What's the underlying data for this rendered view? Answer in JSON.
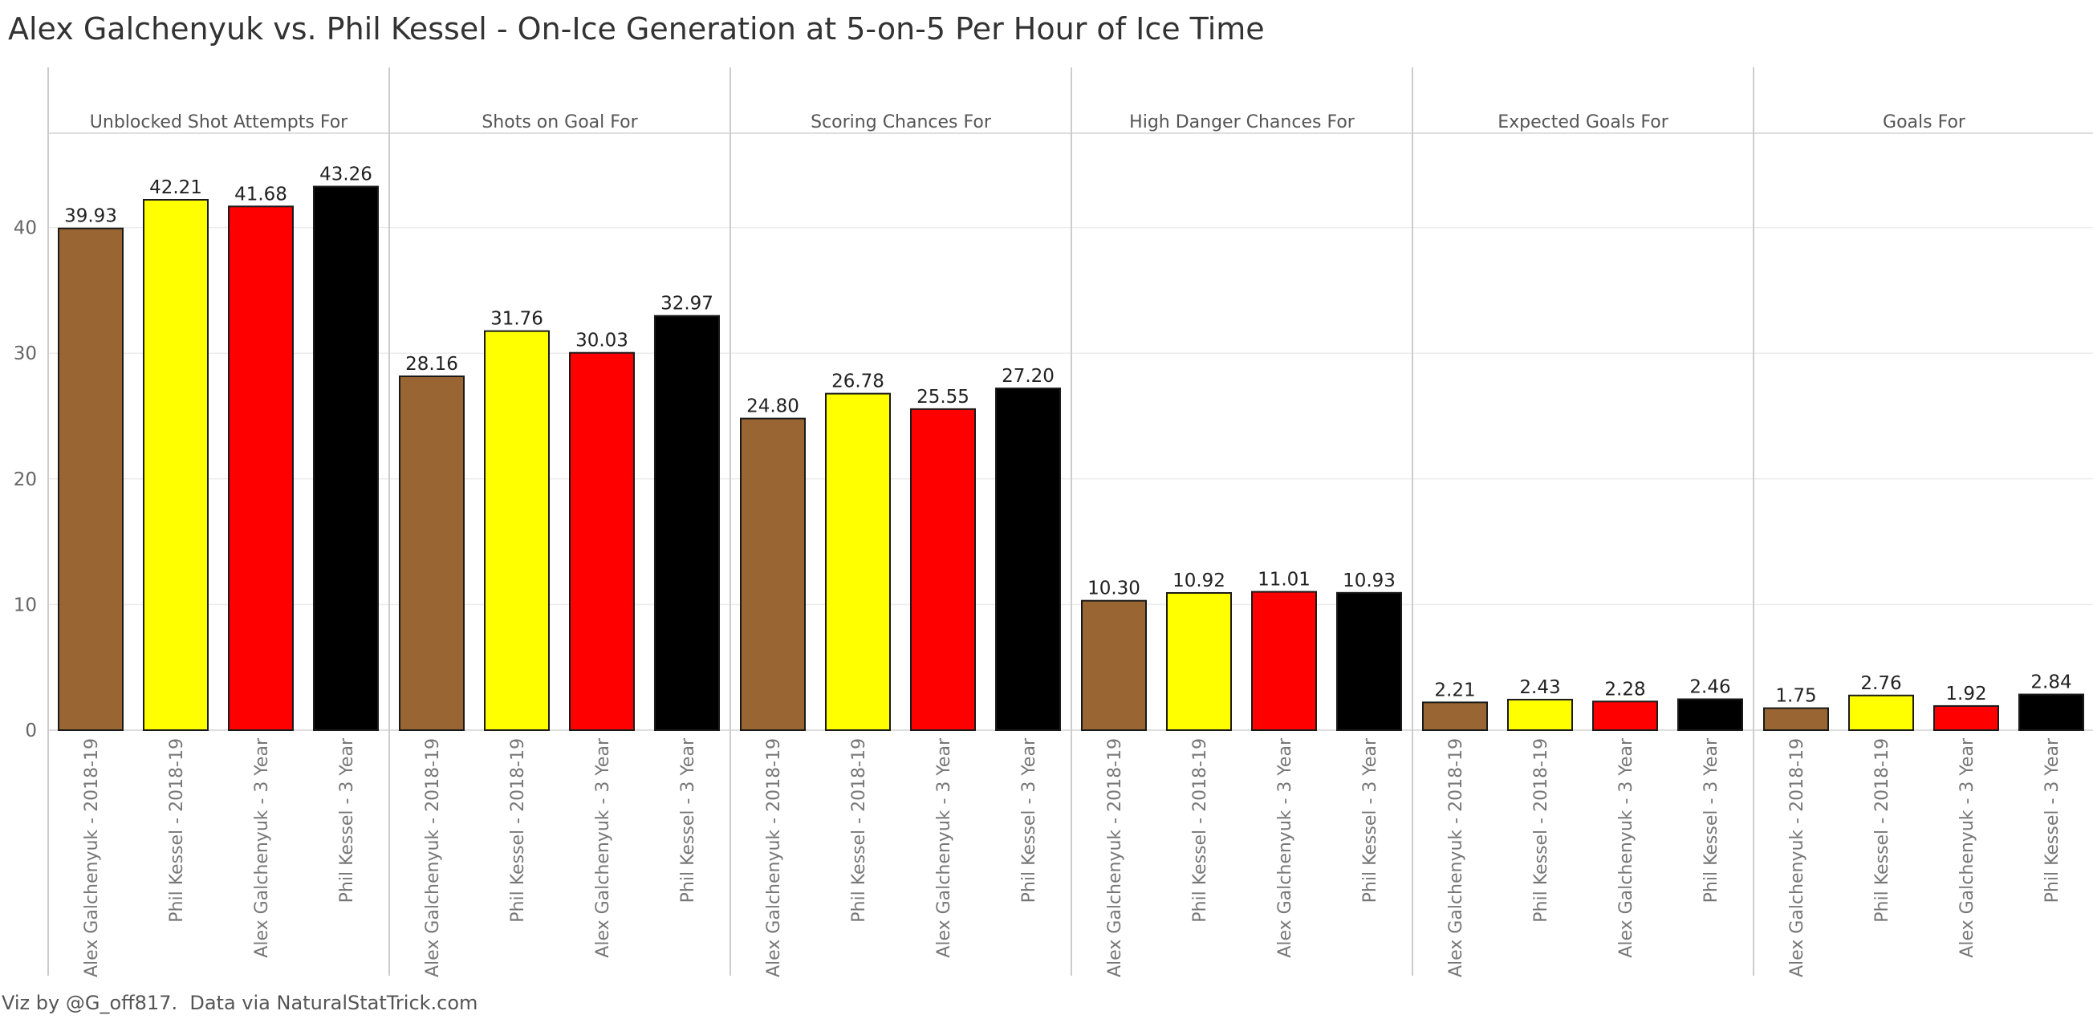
{
  "title": "Alex Galchenyuk vs. Phil Kessel - On-Ice Generation at 5-on-5 Per Hour of Ice Time",
  "footer": "Viz by @G_off817.  Data via NaturalStatTrick.com",
  "colors": {
    "Alex Galchenyuk - 2018-19": "#996633",
    "Phil Kessel - 2018-19": "#ffff00",
    "Alex Galchenyuk - 3 Year": "#ff0000",
    "Phil Kessel - 3 Year": "#000000"
  },
  "chart_data": {
    "type": "bar",
    "categories": [
      "Alex Galchenyuk - 2018-19",
      "Phil Kessel - 2018-19",
      "Alex Galchenyuk - 3 Year",
      "Phil Kessel - 3 Year"
    ],
    "panels": [
      {
        "name": "Unblocked Shot Attempts For",
        "values": [
          39.93,
          42.21,
          41.68,
          43.26
        ],
        "labels": [
          "39.93",
          "42.21",
          "41.68",
          "43.26"
        ]
      },
      {
        "name": "Shots on Goal For",
        "values": [
          28.16,
          31.76,
          30.03,
          32.97
        ],
        "labels": [
          "28.16",
          "31.76",
          "30.03",
          "32.97"
        ]
      },
      {
        "name": "Scoring Chances For",
        "values": [
          24.8,
          26.78,
          25.55,
          27.2
        ],
        "labels": [
          "24.80",
          "26.78",
          "25.55",
          "27.20"
        ]
      },
      {
        "name": "High Danger Chances For",
        "values": [
          10.3,
          10.92,
          11.01,
          10.93
        ],
        "labels": [
          "10.30",
          "10.92",
          "11.01",
          "10.93"
        ]
      },
      {
        "name": "Expected Goals For",
        "values": [
          2.21,
          2.43,
          2.28,
          2.46
        ],
        "labels": [
          "2.21",
          "2.43",
          "2.28",
          "2.46"
        ]
      },
      {
        "name": "Goals For",
        "values": [
          1.75,
          2.76,
          1.92,
          2.84
        ],
        "labels": [
          "1.75",
          "2.76",
          "1.92",
          "2.84"
        ]
      }
    ],
    "yticks": [
      0,
      10,
      20,
      30,
      40
    ],
    "ylim": [
      0,
      50
    ],
    "grid": true,
    "legend": "none"
  }
}
